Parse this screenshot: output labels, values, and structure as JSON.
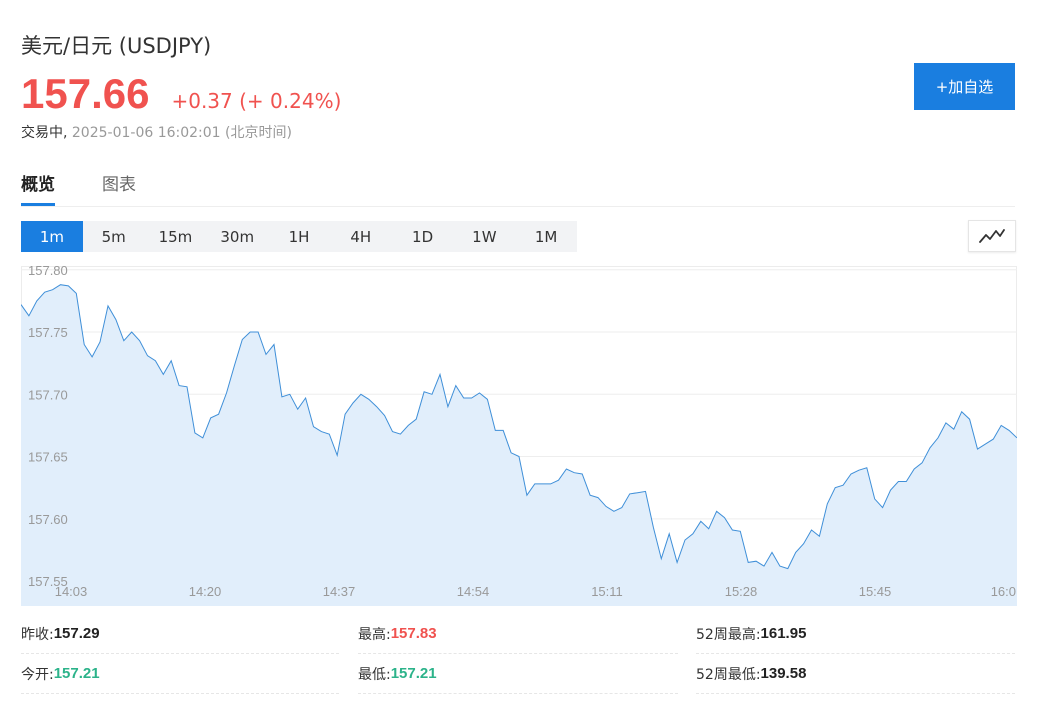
{
  "header": {
    "title": "美元/日元 (USDJPY)",
    "price": "157.66",
    "change": "+0.37 (+ 0.24%)",
    "status_prefix": "交易中,",
    "status_time": " 2025-01-06 16:02:01 (北京时间)"
  },
  "add_button_label": "+加自选",
  "tabs": [
    {
      "label": "概览",
      "active": true
    },
    {
      "label": "图表",
      "active": false
    }
  ],
  "ranges": [
    {
      "label": "1m",
      "active": true
    },
    {
      "label": "5m",
      "active": false
    },
    {
      "label": "15m",
      "active": false
    },
    {
      "label": "30m",
      "active": false
    },
    {
      "label": "1H",
      "active": false
    },
    {
      "label": "4H",
      "active": false
    },
    {
      "label": "1D",
      "active": false
    },
    {
      "label": "1W",
      "active": false
    },
    {
      "label": "1M",
      "active": false
    }
  ],
  "chart_toggle_icon": "line-chart-icon",
  "colors": {
    "up": "#f0524f",
    "down": "#2cb38a",
    "accent": "#1a7ee0",
    "line": "#3f8fd8",
    "area": "#e1eefb"
  },
  "chart_data": {
    "type": "area",
    "x_ticks": [
      "14:03",
      "14:20",
      "14:37",
      "14:54",
      "15:11",
      "15:28",
      "15:45",
      "16:0"
    ],
    "y_ticks": [
      "157.80",
      "157.75",
      "157.70",
      "157.65",
      "157.60",
      "157.55"
    ],
    "ylim": [
      157.53,
      157.803
    ],
    "xlim": [
      0,
      125
    ],
    "grid": true,
    "values": [
      157.772,
      157.763,
      157.775,
      157.782,
      157.784,
      157.788,
      157.787,
      157.781,
      157.74,
      157.73,
      157.742,
      157.771,
      157.76,
      157.743,
      157.75,
      157.743,
      157.731,
      157.727,
      157.716,
      157.727,
      157.707,
      157.706,
      157.669,
      157.665,
      157.681,
      157.684,
      157.701,
      157.723,
      157.744,
      157.75,
      157.75,
      157.732,
      157.74,
      157.698,
      157.7,
      157.688,
      157.697,
      157.674,
      157.67,
      157.668,
      157.651,
      157.684,
      157.693,
      157.7,
      157.696,
      157.69,
      157.683,
      157.67,
      157.668,
      157.675,
      157.68,
      157.702,
      157.7,
      157.716,
      157.69,
      157.707,
      157.697,
      157.697,
      157.701,
      157.696,
      157.671,
      157.671,
      157.653,
      157.65,
      157.619,
      157.628,
      157.628,
      157.628,
      157.631,
      157.64,
      157.637,
      157.636,
      157.619,
      157.617,
      157.61,
      157.606,
      157.609,
      157.62,
      157.621,
      157.622,
      157.593,
      157.568,
      157.588,
      157.565,
      157.583,
      157.588,
      157.598,
      157.592,
      157.606,
      157.601,
      157.591,
      157.59,
      157.565,
      157.566,
      157.562,
      157.573,
      157.562,
      157.56,
      157.573,
      157.58,
      157.591,
      157.586,
      157.612,
      157.625,
      157.627,
      157.636,
      157.639,
      157.641,
      157.616,
      157.609,
      157.623,
      157.63,
      157.63,
      157.64,
      157.645,
      157.657,
      157.665,
      157.677,
      157.672,
      157.686,
      157.68,
      157.656,
      157.66,
      157.664,
      157.675,
      157.671,
      157.665
    ]
  },
  "stats": [
    {
      "label": "昨收:",
      "value": "157.29",
      "color": "#222"
    },
    {
      "label": "最高:",
      "value": "157.83",
      "color": "#f0524f"
    },
    {
      "label": "52周最高:",
      "value": "161.95",
      "color": "#222"
    },
    {
      "label": "今开:",
      "value": "157.21",
      "color": "#2cb38a"
    },
    {
      "label": "最低:",
      "value": "157.21",
      "color": "#2cb38a"
    },
    {
      "label": "52周最低:",
      "value": "139.58",
      "color": "#222"
    }
  ]
}
